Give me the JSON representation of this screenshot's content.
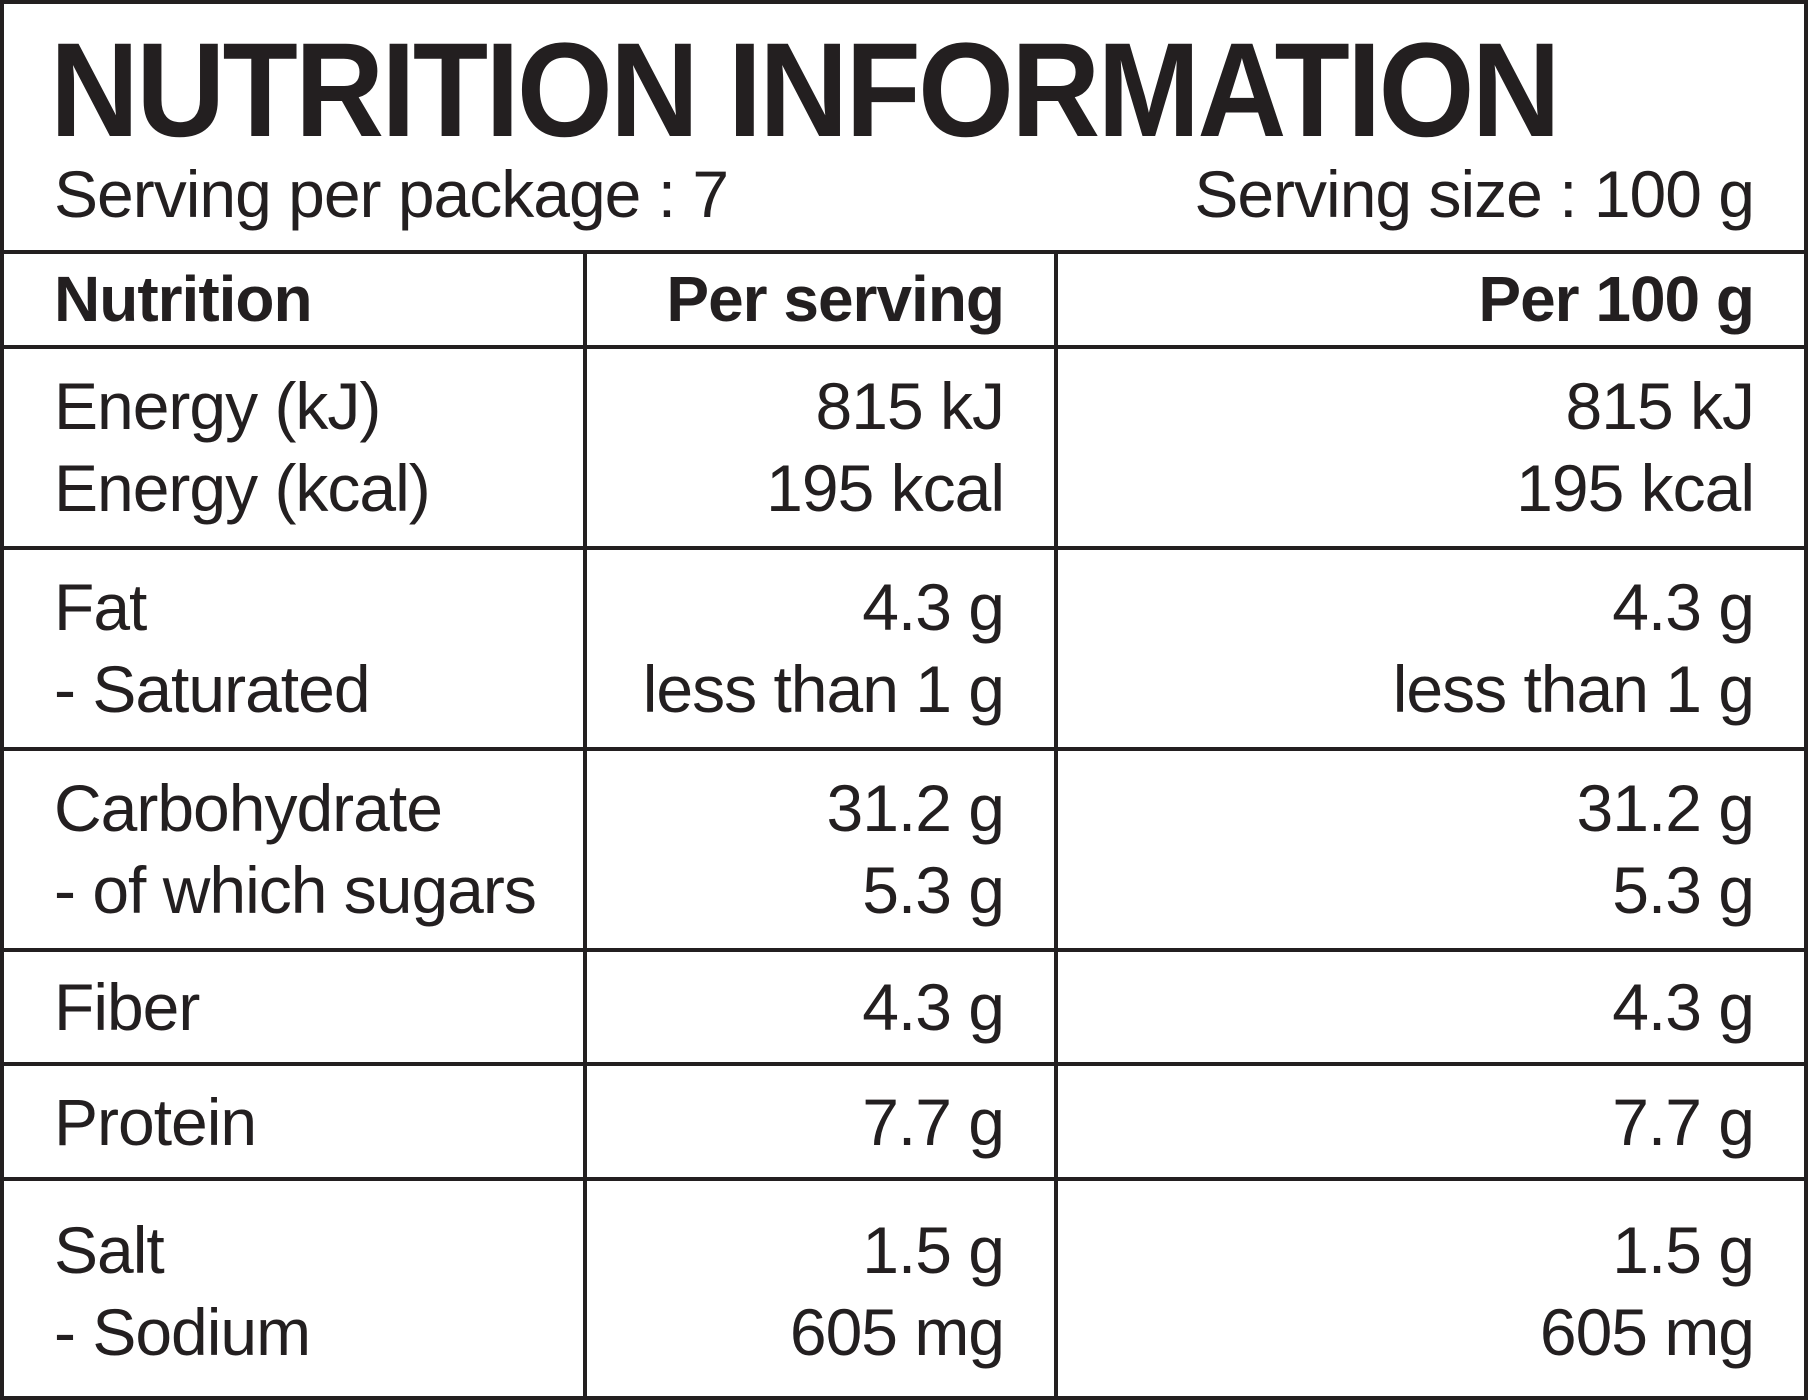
{
  "title": "NUTRITION INFORMATION",
  "serving_per_package": "Serving per package : 7",
  "serving_size": "Serving size : 100 g",
  "columns": [
    "Nutrition",
    "Per serving",
    "Per 100 g"
  ],
  "rows": [
    {
      "names": [
        "Energy (kJ)",
        "Energy (kcal)"
      ],
      "per_serving": [
        "815 kJ",
        "195 kcal"
      ],
      "per_100g": [
        "815 kJ",
        "195 kcal"
      ]
    },
    {
      "names": [
        "Fat",
        "- Saturated"
      ],
      "per_serving": [
        "4.3 g",
        "less than 1 g"
      ],
      "per_100g": [
        "4.3 g",
        "less than 1 g"
      ]
    },
    {
      "names": [
        "Carbohydrate",
        "- of which sugars"
      ],
      "per_serving": [
        "31.2 g",
        "5.3 g"
      ],
      "per_100g": [
        "31.2 g",
        "5.3 g"
      ]
    },
    {
      "names": [
        "Fiber"
      ],
      "per_serving": [
        "4.3 g"
      ],
      "per_100g": [
        "4.3 g"
      ]
    },
    {
      "names": [
        "Protein"
      ],
      "per_serving": [
        "7.7 g"
      ],
      "per_100g": [
        "7.7 g"
      ]
    },
    {
      "names": [
        "Salt",
        "- Sodium"
      ],
      "per_serving": [
        "1.5 g",
        "605 mg"
      ],
      "per_100g": [
        "1.5 g",
        "605 mg"
      ]
    }
  ],
  "colors": {
    "ink": "#231f20",
    "background": "#ffffff"
  }
}
